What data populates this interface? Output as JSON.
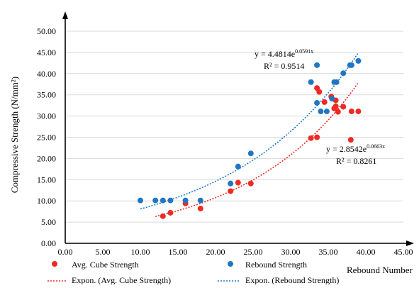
{
  "chart_data": {
    "type": "scatter",
    "title": "",
    "xlabel": "Rebound Number",
    "ylabel": "Compressive Strength  (N/mm²)",
    "xlim": [
      0,
      45
    ],
    "ylim": [
      0,
      50
    ],
    "x_ticks": [
      "0.00",
      "5.00",
      "10.00",
      "15.00",
      "20.00",
      "25.00",
      "30.00",
      "35.00",
      "40.00",
      "45.00"
    ],
    "y_ticks": [
      "0.00",
      "5.00",
      "10.00",
      "15.00",
      "20.00",
      "25.00",
      "30.00",
      "35.00",
      "40.00",
      "45.00",
      "50.00"
    ],
    "grid": "horizontal",
    "legend_position": "bottom",
    "series": [
      {
        "name": "Avg. Cube Strength",
        "color": "#ee2a24",
        "points": [
          [
            13.0,
            6.4
          ],
          [
            14.0,
            7.2
          ],
          [
            16.0,
            9.4
          ],
          [
            18.0,
            8.2
          ],
          [
            22.0,
            12.3
          ],
          [
            23.0,
            14.3
          ],
          [
            24.7,
            14.1
          ],
          [
            32.7,
            24.8
          ],
          [
            33.5,
            25.0
          ],
          [
            33.5,
            36.6
          ],
          [
            33.8,
            35.7
          ],
          [
            34.5,
            33.3
          ],
          [
            35.4,
            34.6
          ],
          [
            35.8,
            31.8
          ],
          [
            36.0,
            33.7
          ],
          [
            36.0,
            32.3
          ],
          [
            36.3,
            31.0
          ],
          [
            37.0,
            32.2
          ],
          [
            38.0,
            24.4
          ],
          [
            38.1,
            31.1
          ],
          [
            39.0,
            31.1
          ]
        ]
      },
      {
        "name": "Rebound Strength",
        "color": "#1f77c4",
        "points": [
          [
            10.0,
            10.1
          ],
          [
            12.0,
            10.1
          ],
          [
            13.0,
            10.1
          ],
          [
            14.0,
            10.1
          ],
          [
            16.0,
            10.1
          ],
          [
            18.0,
            10.1
          ],
          [
            22.0,
            14.1
          ],
          [
            23.0,
            18.1
          ],
          [
            24.7,
            21.2
          ],
          [
            32.7,
            38.0
          ],
          [
            33.5,
            42.0
          ],
          [
            33.5,
            33.1
          ],
          [
            34.0,
            31.1
          ],
          [
            34.8,
            31.1
          ],
          [
            35.5,
            34.1
          ],
          [
            35.8,
            38.0
          ],
          [
            36.1,
            38.0
          ],
          [
            37.0,
            40.1
          ],
          [
            37.9,
            42.0
          ],
          [
            38.1,
            42.0
          ],
          [
            39.0,
            43.0
          ]
        ]
      }
    ],
    "trendlines": [
      {
        "name": "Expon. (Avg. Cube Strength)",
        "color": "#ee2a24",
        "a": 2.8542,
        "b": 0.0663,
        "x_range": [
          12,
          39
        ],
        "equation_text": "y = 2.8542e",
        "equation_exponent": "0.0663x",
        "r2_text": "R² = 0.8261"
      },
      {
        "name": "Expon. (Rebound Strength)",
        "color": "#1f77c4",
        "a": 4.4814,
        "b": 0.0591,
        "x_range": [
          10,
          39
        ],
        "equation_text": "y = 4.4814e",
        "equation_exponent": "0.0591x",
        "r2_text": "R² = 0.9514"
      }
    ]
  }
}
